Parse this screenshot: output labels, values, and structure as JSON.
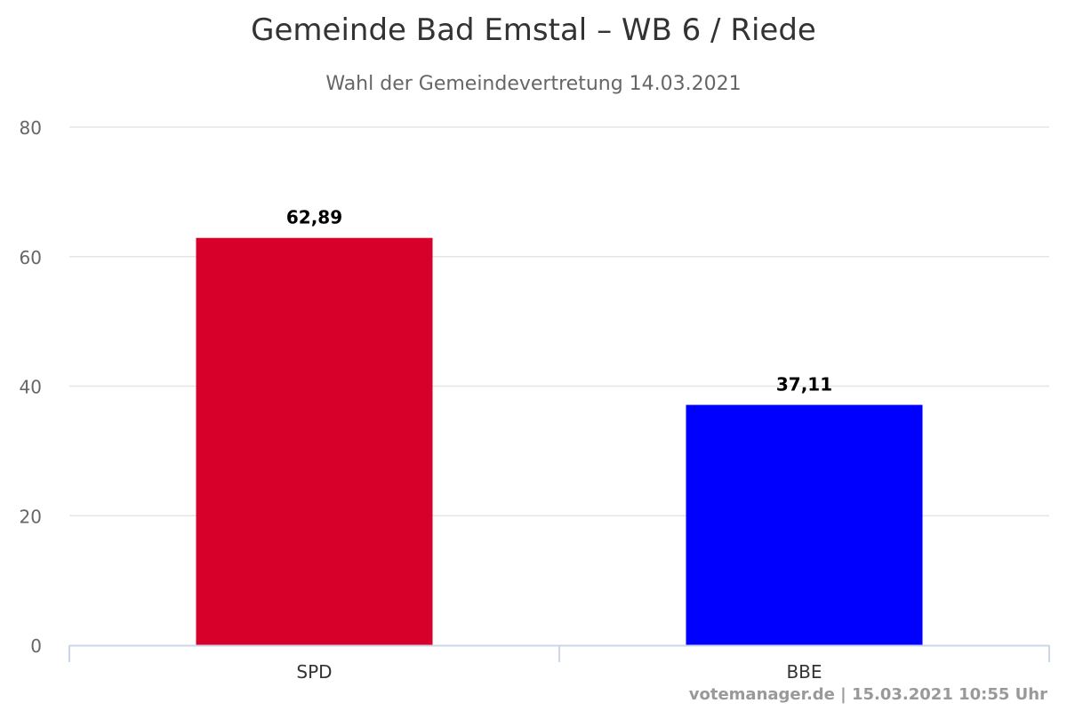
{
  "chart_data": {
    "type": "bar",
    "title": "Gemeinde Bad Emstal – WB 6  / Riede",
    "subtitle": "Wahl der Gemeindevertretung 14.03.2021",
    "categories": [
      "SPD",
      "BBE"
    ],
    "values": [
      62.89,
      37.11
    ],
    "data_labels": [
      "62,89",
      "37,11"
    ],
    "bar_colors": [
      "#d6002b",
      "#0000ff"
    ],
    "ylim": [
      0,
      80
    ],
    "yticks": [
      0,
      20,
      40,
      60,
      80
    ],
    "grid": true,
    "legend": "none",
    "xlabel": "",
    "ylabel": ""
  },
  "credits": "votemanager.de | 15.03.2021 10:55 Uhr"
}
